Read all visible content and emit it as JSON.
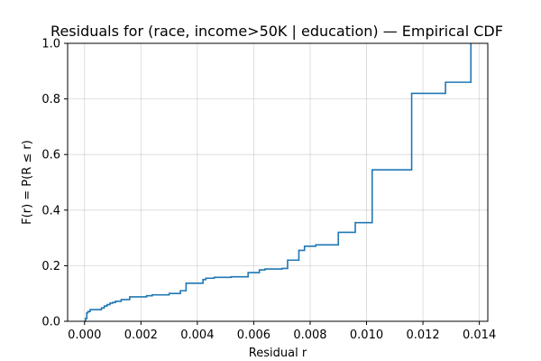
{
  "chart_data": {
    "type": "line",
    "title": "Residuals for (race, income>50K | education) — Empirical CDF",
    "xlabel": "Residual r",
    "ylabel": "F(r) = P(R ≤ r)",
    "xlim": [
      -0.0006,
      0.0143
    ],
    "ylim": [
      0,
      1
    ],
    "xticks": [
      0.0,
      0.002,
      0.004,
      0.006,
      0.008,
      0.01,
      0.012,
      0.014
    ],
    "xtick_labels": [
      "0.000",
      "0.002",
      "0.004",
      "0.006",
      "0.008",
      "0.010",
      "0.012",
      "0.014"
    ],
    "yticks": [
      0.0,
      0.2,
      0.4,
      0.6,
      0.8,
      1.0
    ],
    "ytick_labels": [
      "0.0",
      "0.2",
      "0.4",
      "0.6",
      "0.8",
      "1.0"
    ],
    "grid": true,
    "line_style": "step-post",
    "color": "#1f77b4",
    "series": [
      {
        "x": [
          0.0,
          3e-05,
          8e-05,
          0.00012,
          0.0002,
          0.0006,
          0.0007,
          0.0008,
          0.0009,
          0.001,
          0.0011,
          0.0013,
          0.0016,
          0.0022,
          0.0024,
          0.003,
          0.0034,
          0.0036,
          0.0042,
          0.0043,
          0.0046,
          0.0052,
          0.0058,
          0.0062,
          0.0064,
          0.007,
          0.0072,
          0.0076,
          0.0078,
          0.0082,
          0.009,
          0.0096,
          0.0102,
          0.0116,
          0.0128,
          0.0137
        ],
        "y": [
          0.0,
          0.01,
          0.03,
          0.035,
          0.042,
          0.048,
          0.055,
          0.06,
          0.065,
          0.068,
          0.072,
          0.078,
          0.088,
          0.092,
          0.095,
          0.1,
          0.11,
          0.137,
          0.15,
          0.155,
          0.158,
          0.16,
          0.175,
          0.185,
          0.188,
          0.19,
          0.22,
          0.255,
          0.27,
          0.275,
          0.32,
          0.355,
          0.545,
          0.82,
          0.86,
          1.0
        ]
      }
    ]
  }
}
